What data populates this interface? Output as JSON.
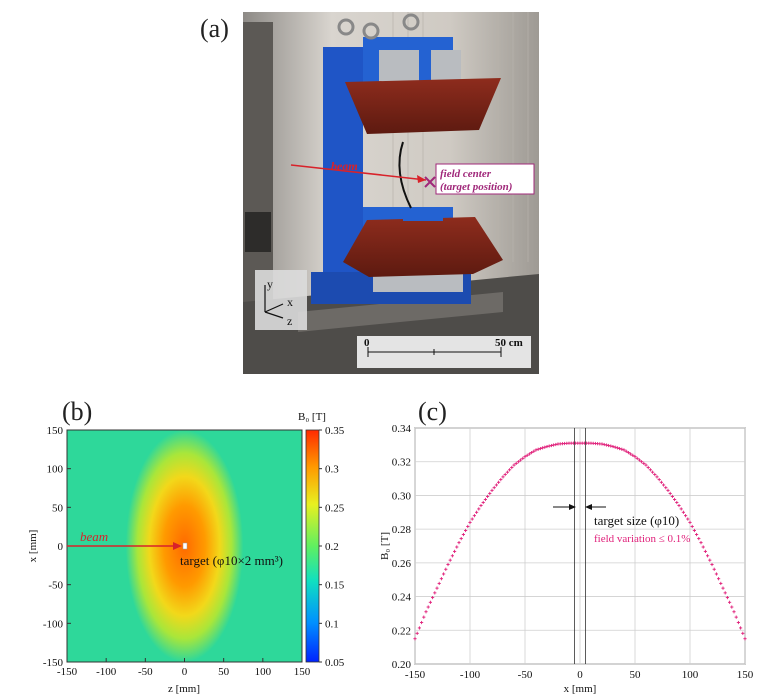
{
  "panel_a": {
    "label": "(a)",
    "beam_label": "beam",
    "field_center_line1": "field center",
    "field_center_line2": "(target position)",
    "axis_y": "y",
    "axis_x": "x",
    "axis_z": "z",
    "scale_start": "0",
    "scale_end": "50 cm",
    "colors": {
      "magnet_blue": "#1f55c6",
      "pole_red": "#7a2418",
      "annotation_magenta": "#a0287a",
      "beam_red": "#d8222a"
    }
  },
  "panel_b": {
    "label": "(b)",
    "colorbar_title": "B₀ [T]",
    "colorbar_ticks": [
      "0.35",
      "0.3",
      "0.25",
      "0.2",
      "0.15",
      "0.1",
      "0.05"
    ],
    "x_ticks": [
      "-150",
      "-100",
      "-50",
      "0",
      "50",
      "100",
      "150"
    ],
    "y_ticks": [
      "150",
      "100",
      "50",
      "0",
      "-50",
      "-100",
      "-150"
    ],
    "xlabel": "z [mm]",
    "ylabel": "x [mm]",
    "beam_label": "beam",
    "target_label": "target (φ10×2 mm³)"
  },
  "panel_c": {
    "label": "(c)",
    "target_size_label": "target size (φ10)",
    "field_variation_label": "field variation ≤ 0.1%",
    "marker_color": "#e0207a"
  },
  "chart_data": [
    {
      "type": "heatmap",
      "xlabel": "z [mm]",
      "ylabel": "x [mm]",
      "xlim": [
        -150,
        150
      ],
      "ylim": [
        -150,
        150
      ],
      "colorbar": {
        "title": "B₀ [T]",
        "range": [
          0.05,
          0.35
        ]
      },
      "peak_value": 0.33,
      "peak_at": [
        0,
        0
      ],
      "x_ticks": [
        -150,
        -100,
        -50,
        0,
        50,
        100,
        150
      ],
      "y_ticks": [
        -150,
        -100,
        -50,
        0,
        50,
        100,
        150
      ]
    },
    {
      "type": "scatter",
      "xlabel": "x [mm]",
      "ylabel": "B₀ [T]",
      "xlim": [
        -150,
        150
      ],
      "ylim": [
        0.2,
        0.34
      ],
      "x_ticks": [
        -150,
        -100,
        -50,
        0,
        50,
        100,
        150
      ],
      "y_ticks": [
        0.2,
        0.22,
        0.24,
        0.26,
        0.28,
        0.3,
        0.32,
        0.34
      ],
      "grid": true,
      "x": [
        -150,
        -140,
        -130,
        -120,
        -110,
        -100,
        -90,
        -80,
        -70,
        -60,
        -50,
        -40,
        -30,
        -20,
        -10,
        0,
        10,
        20,
        30,
        40,
        50,
        60,
        70,
        80,
        90,
        100,
        110,
        120,
        130,
        140,
        150
      ],
      "y": [
        0.215,
        0.231,
        0.245,
        0.259,
        0.272,
        0.284,
        0.294,
        0.303,
        0.311,
        0.318,
        0.323,
        0.327,
        0.329,
        0.3305,
        0.331,
        0.331,
        0.331,
        0.3305,
        0.329,
        0.327,
        0.323,
        0.318,
        0.311,
        0.303,
        0.294,
        0.284,
        0.272,
        0.259,
        0.245,
        0.231,
        0.215
      ],
      "vlines": [
        -5,
        5
      ]
    }
  ]
}
